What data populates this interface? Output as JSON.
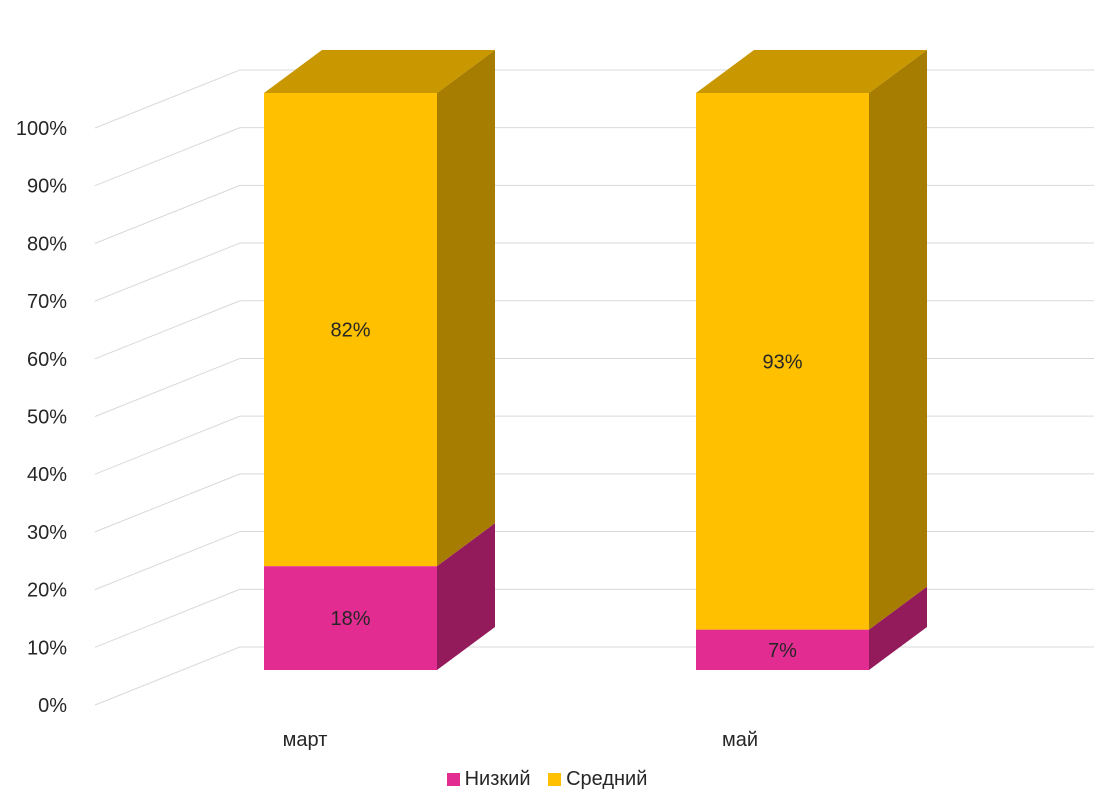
{
  "chart_data": {
    "type": "bar",
    "stacked": true,
    "percent_stacked": true,
    "three_d": true,
    "categories": [
      "март",
      "май"
    ],
    "series": [
      {
        "name": "Низкий",
        "values": [
          18,
          7
        ],
        "labels": [
          "18%",
          "7%"
        ],
        "color": "#E32C92",
        "side_color": "#931B5C",
        "top_color": "#B0226F"
      },
      {
        "name": "Средний",
        "values": [
          82,
          93
        ],
        "labels": [
          "82%",
          "93%"
        ],
        "color": "#FFC000",
        "side_color": "#A67D00",
        "top_color": "#C99700"
      }
    ],
    "y_ticks": [
      "0%",
      "10%",
      "20%",
      "30%",
      "40%",
      "50%",
      "60%",
      "70%",
      "80%",
      "90%",
      "100%"
    ],
    "ylim": [
      0,
      100
    ],
    "grid": true,
    "legend_position": "bottom"
  }
}
